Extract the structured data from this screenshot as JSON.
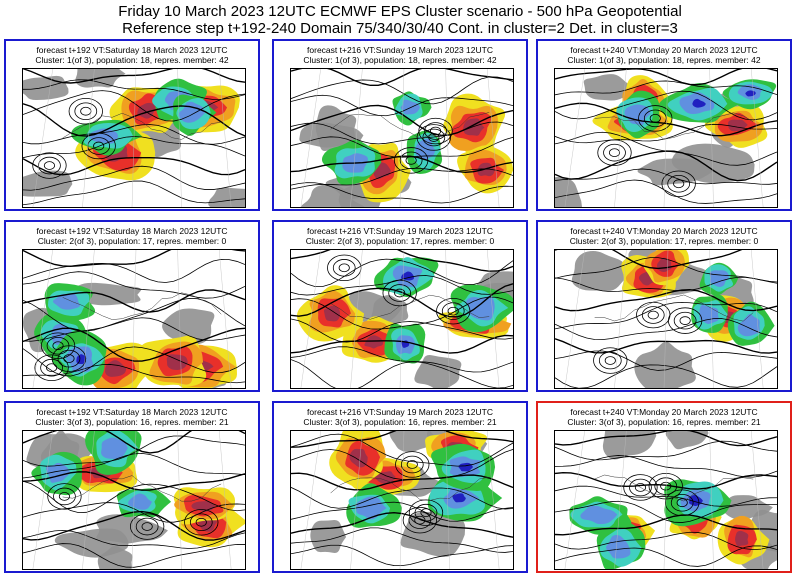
{
  "title": {
    "line1": "Friday 10 March 2023 12UTC ECMWF EPS Cluster scenario - 500 hPa Geopotential",
    "line2": "Reference step t+192-240 Domain 75/340/30/40 Cont. in cluster=2 Det. in cluster=3"
  },
  "panels": [
    {
      "line1": "forecast t+192 VT:Saturday 18 March 2023 12UTC",
      "line2": "Cluster: 1(of 3), population: 18, repres. member: 42"
    },
    {
      "line1": "forecast t+216 VT:Sunday 19 March 2023 12UTC",
      "line2": "Cluster: 1(of 3), population: 18, repres. member: 42"
    },
    {
      "line1": "forecast t+240 VT:Monday 20 March 2023 12UTC",
      "line2": "Cluster: 1(of 3), population: 18, repres. member: 42"
    },
    {
      "line1": "forecast t+192 VT:Saturday 18 March 2023 12UTC",
      "line2": "Cluster: 2(of 3), population: 17, repres. member: 0"
    },
    {
      "line1": "forecast t+216 VT:Sunday 19 March 2023 12UTC",
      "line2": "Cluster: 2(of 3), population: 17, repres. member: 0"
    },
    {
      "line1": "forecast t+240 VT:Monday 20 March 2023 12UTC",
      "line2": "Cluster: 2(of 3), population: 17, repres. member: 0"
    },
    {
      "line1": "forecast t+192 VT:Saturday 18 March 2023 12UTC",
      "line2": "Cluster: 3(of 3), population: 16, repres. member: 21"
    },
    {
      "line1": "forecast t+216 VT:Sunday 19 March 2023 12UTC",
      "line2": "Cluster: 3(of 3), population: 16, repres. member: 21"
    },
    {
      "line1": "forecast t+240 VT:Monday 20 March 2023 12UTC",
      "line2": "Cluster: 3(of 3), population: 16, repres. member: 21"
    }
  ],
  "colors": {
    "cluster_border": "#1a1ad0",
    "deterministic_border": "#e0201a",
    "anomaly_strong_positive": "#a0304a",
    "anomaly_positive": "#e8302a",
    "anomaly_weak_positive": "#f0a020",
    "anomaly_marginal_positive": "#f0e020",
    "anomaly_marginal_negative": "#30c040",
    "anomaly_negative": "#40d0c0",
    "anomaly_strong_negative": "#6090e0",
    "anomaly_very_strong_negative": "#2020c0",
    "land_mask": "#909090"
  }
}
